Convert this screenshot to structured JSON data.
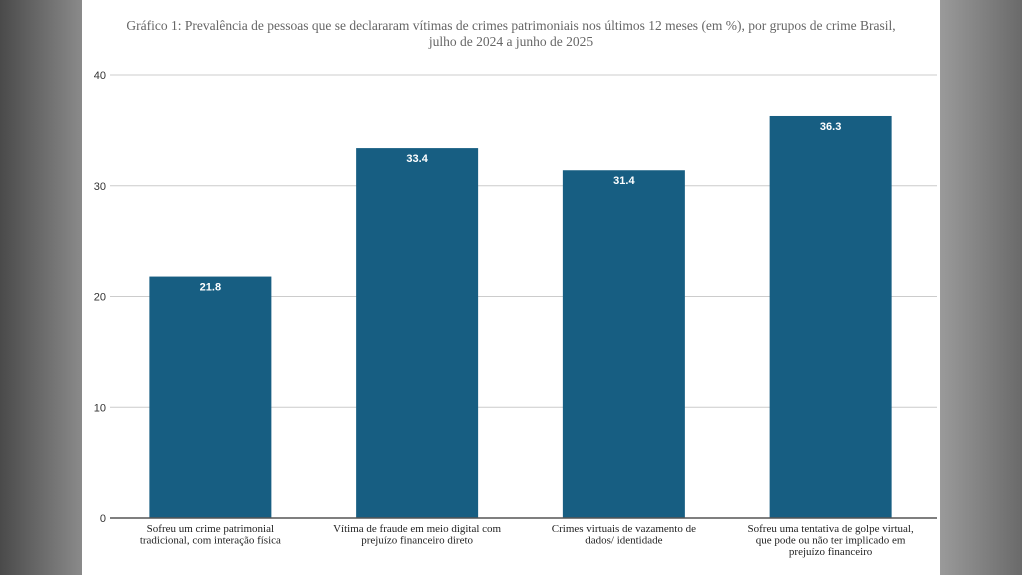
{
  "chart_data": {
    "type": "bar",
    "title": "Gráfico 1:  Prevalência de pessoas que se declararam vítimas de crimes patrimoniais nos últimos 12 meses (em %), por grupos de crime Brasil, julho de 2024 a junho de 2025",
    "title_lines": [
      "Gráfico 1:  Prevalência de pessoas que se declararam vítimas de crimes patrimoniais nos últimos 12 meses (em %), por grupos de crime Brasil,",
      "julho de 2024 a junho de 2025"
    ],
    "categories": [
      [
        "Sofreu um crime patrimonial",
        "tradicional, com interação física"
      ],
      [
        "Vítima de fraude em meio digital com",
        "prejuízo financeiro direto"
      ],
      [
        "Crimes virtuais de vazamento de",
        "dados/ identidade"
      ],
      [
        "Sofreu uma tentativa de golpe virtual,",
        "que pode ou não ter implicado em",
        "prejuízo financeiro"
      ]
    ],
    "values": [
      21.8,
      33.4,
      31.4,
      36.3
    ],
    "yticks": [
      0,
      10,
      20,
      30,
      40
    ],
    "ylim": [
      0,
      40
    ],
    "grid": true,
    "bar_color": "#175e82",
    "xlabel": "",
    "ylabel": ""
  }
}
